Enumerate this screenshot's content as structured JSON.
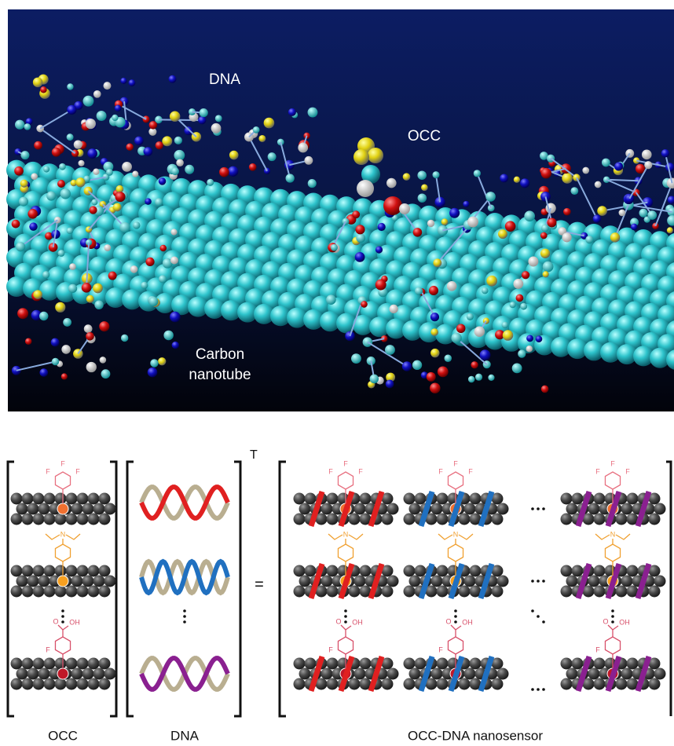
{
  "panel_a": {
    "dna": "DNA",
    "occ": "OCC",
    "nanotube": [
      "Carbon",
      "nanotube"
    ]
  },
  "panel_b": {
    "molecules": [
      {
        "atoms": [
          "F",
          "F",
          "F"
        ]
      },
      {
        "atoms": [
          "N"
        ]
      },
      {
        "atoms": [
          "O",
          "OH",
          "F"
        ]
      }
    ],
    "transpose": "T",
    "equals": "=",
    "captions": [
      "OCC",
      "DNA",
      "OCC-DNA nanosensor"
    ]
  }
}
